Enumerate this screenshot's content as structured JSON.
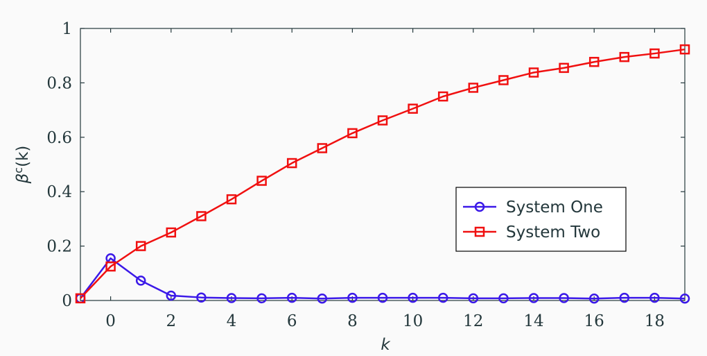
{
  "chart_data": {
    "type": "line",
    "xlabel": "k",
    "ylabel": {
      "base": "β",
      "sup": "c",
      "tail": "(k)"
    },
    "xlim": [
      -1,
      19
    ],
    "ylim": [
      0,
      1
    ],
    "xticks": [
      0,
      2,
      4,
      6,
      8,
      10,
      12,
      14,
      16,
      18
    ],
    "yticks": [
      0,
      0.2,
      0.4,
      0.6,
      0.8,
      1
    ],
    "ytick_labels": [
      "0",
      "0.2",
      "0.4",
      "0.6",
      "0.8",
      "1"
    ],
    "grid": false,
    "legend_position": "right",
    "x": [
      -1,
      0,
      1,
      2,
      3,
      4,
      5,
      6,
      7,
      8,
      9,
      10,
      11,
      12,
      13,
      14,
      15,
      16,
      17,
      18,
      19
    ],
    "series": [
      {
        "name": "System One",
        "color": "#3b19e8",
        "marker": "circle",
        "values": [
          0.008,
          0.155,
          0.073,
          0.018,
          0.011,
          0.009,
          0.008,
          0.01,
          0.007,
          0.01,
          0.01,
          0.01,
          0.01,
          0.008,
          0.008,
          0.009,
          0.009,
          0.007,
          0.01,
          0.01,
          0.007
        ]
      },
      {
        "name": "System Two",
        "color": "#f01010",
        "marker": "square",
        "values": [
          0.008,
          0.125,
          0.2,
          0.25,
          0.31,
          0.372,
          0.44,
          0.505,
          0.56,
          0.615,
          0.662,
          0.705,
          0.75,
          0.782,
          0.81,
          0.838,
          0.855,
          0.877,
          0.895,
          0.908,
          0.923
        ]
      }
    ]
  }
}
